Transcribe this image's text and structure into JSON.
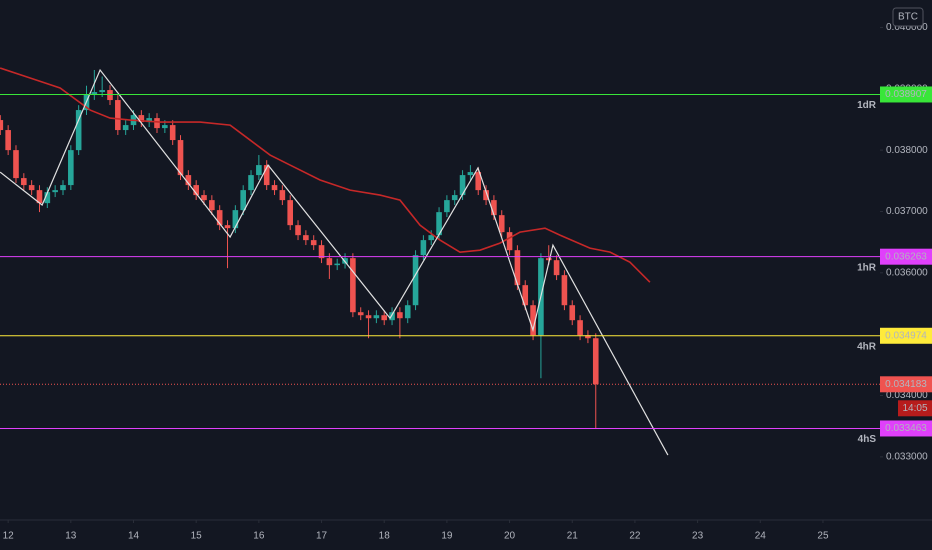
{
  "chart_data": {
    "type": "candlestick",
    "currency": "BTC",
    "x": [
      11.875,
      12,
      12.125,
      12.25,
      12.375,
      12.5,
      12.625,
      12.75,
      12.875,
      13,
      13.125,
      13.25,
      13.375,
      13.5,
      13.625,
      13.75,
      13.875,
      14,
      14.125,
      14.25,
      14.375,
      14.5,
      14.625,
      14.75,
      14.875,
      15,
      15.125,
      15.25,
      15.375,
      15.5,
      15.625,
      15.75,
      15.875,
      16,
      16.125,
      16.25,
      16.375,
      16.5,
      16.625,
      16.75,
      16.875,
      17,
      17.125,
      17.25,
      17.375,
      17.5,
      17.625,
      17.75,
      17.875,
      18,
      18.125,
      18.25,
      18.375,
      18.5,
      18.625,
      18.75,
      18.875,
      19,
      19.125,
      19.25,
      19.375,
      19.5,
      19.625,
      19.75,
      19.875,
      20,
      20.125,
      20.25,
      20.375,
      20.5,
      20.625,
      20.75,
      20.875,
      21,
      21.125,
      21.25,
      21.375
    ],
    "open": [
      0.03849,
      0.038327,
      0.038,
      0.037544,
      0.03743,
      0.037348,
      0.037136,
      0.037315,
      0.037348,
      0.03743,
      0.038,
      0.038653,
      0.038898,
      0.038946,
      0.038979,
      0.038816,
      0.038327,
      0.038408,
      0.038571,
      0.038457,
      0.038522,
      0.038359,
      0.038408,
      0.038164,
      0.037593,
      0.03743,
      0.037267,
      0.037185,
      0.037022,
      0.036777,
      0.036728,
      0.037022,
      0.037348,
      0.037593,
      0.037756,
      0.03743,
      0.037348,
      0.037185,
      0.036777,
      0.036614,
      0.036533,
      0.036451,
      0.036239,
      0.036125,
      0.03615,
      0.036239,
      0.035358,
      0.035309,
      0.03526,
      0.035309,
      0.035228,
      0.035358,
      0.03526,
      0.035472,
      0.036288,
      0.036533,
      0.036614,
      0.036989,
      0.037185,
      0.037267,
      0.037593,
      0.037642,
      0.037348,
      0.037185,
      0.03694,
      0.036663,
      0.036369,
      0.035799,
      0.035472,
      0.034983,
      0.036239,
      0.036206,
      0.035962,
      0.035472,
      0.035228,
      0.034983,
      0.034934
    ],
    "high": [
      0.03857,
      0.038407,
      0.03808,
      0.037624,
      0.03751,
      0.037428,
      0.037395,
      0.037428,
      0.03751,
      0.03808,
      0.038733,
      0.03905,
      0.039306,
      0.0392,
      0.039059,
      0.038896,
      0.038488,
      0.038651,
      0.038651,
      0.038602,
      0.038602,
      0.038488,
      0.038488,
      0.038244,
      0.037673,
      0.03751,
      0.037347,
      0.037265,
      0.037102,
      0.036857,
      0.037102,
      0.037428,
      0.037673,
      0.03792,
      0.037836,
      0.03751,
      0.037428,
      0.037265,
      0.036857,
      0.036694,
      0.036613,
      0.036531,
      0.036319,
      0.03623,
      0.036319,
      0.036319,
      0.035438,
      0.035389,
      0.035389,
      0.035389,
      0.035438,
      0.035438,
      0.035552,
      0.036368,
      0.036613,
      0.036694,
      0.037069,
      0.037265,
      0.037347,
      0.037673,
      0.037756,
      0.037722,
      0.037428,
      0.037265,
      0.03702,
      0.036743,
      0.036449,
      0.035879,
      0.035552,
      0.036319,
      0.03645,
      0.036286,
      0.036042,
      0.035552,
      0.035308,
      0.035063,
      0.035014
    ],
    "low": [
      0.038247,
      0.03792,
      0.037464,
      0.03735,
      0.037268,
      0.03699,
      0.037056,
      0.037235,
      0.037268,
      0.03735,
      0.03792,
      0.038573,
      0.038818,
      0.038866,
      0.038736,
      0.038247,
      0.038247,
      0.038328,
      0.038377,
      0.038377,
      0.038279,
      0.038279,
      0.038084,
      0.037513,
      0.03735,
      0.037187,
      0.037105,
      0.036942,
      0.036697,
      0.036076,
      0.036648,
      0.036942,
      0.037268,
      0.037513,
      0.03735,
      0.037268,
      0.037105,
      0.036697,
      0.036534,
      0.036453,
      0.036371,
      0.036159,
      0.0359,
      0.036045,
      0.03607,
      0.035278,
      0.035229,
      0.034934,
      0.03518,
      0.035148,
      0.035148,
      0.034934,
      0.03518,
      0.035392,
      0.036208,
      0.036453,
      0.036534,
      0.036909,
      0.037105,
      0.037187,
      0.037513,
      0.037268,
      0.037105,
      0.03686,
      0.036583,
      0.036289,
      0.035719,
      0.035392,
      0.034903,
      0.034282,
      0.036126,
      0.035882,
      0.035392,
      0.035148,
      0.034903,
      0.034854,
      0.033463
    ],
    "close": [
      0.038327,
      0.038,
      0.037544,
      0.03743,
      0.037348,
      0.037136,
      0.037315,
      0.037348,
      0.03743,
      0.038,
      0.038653,
      0.038898,
      0.038946,
      0.038979,
      0.038816,
      0.038327,
      0.038408,
      0.038571,
      0.038457,
      0.038522,
      0.038359,
      0.038408,
      0.038164,
      0.037593,
      0.03743,
      0.037267,
      0.037185,
      0.037022,
      0.036777,
      0.036728,
      0.037022,
      0.037348,
      0.037593,
      0.037756,
      0.03743,
      0.037348,
      0.037185,
      0.036777,
      0.036614,
      0.036533,
      0.036451,
      0.036239,
      0.036125,
      0.03615,
      0.036239,
      0.035358,
      0.035309,
      0.03526,
      0.035309,
      0.035228,
      0.035358,
      0.03526,
      0.035472,
      0.036288,
      0.036533,
      0.036614,
      0.036989,
      0.037185,
      0.037267,
      0.037593,
      0.037642,
      0.037348,
      0.037185,
      0.03694,
      0.036663,
      0.036369,
      0.035799,
      0.035472,
      0.034983,
      0.036239,
      0.036206,
      0.035962,
      0.035472,
      0.035228,
      0.034983,
      0.034934,
      0.034183
    ],
    "up_color": "#26a69a",
    "down_color": "#ef5350",
    "xlim": [
      11.87,
      25.91
    ],
    "xticks": [
      12,
      13,
      14,
      15,
      16,
      17,
      18,
      19,
      20,
      21,
      22,
      23,
      24,
      25
    ],
    "ylim": [
      0.031971,
      0.040447
    ],
    "yticks": [
      {
        "value": 0.033,
        "label": "0.033000"
      },
      {
        "value": 0.034,
        "label": "0.034000"
      },
      {
        "value": 0.035,
        "label": "0.035000"
      },
      {
        "value": 0.036,
        "label": "0.036000"
      },
      {
        "value": 0.037,
        "label": "0.037000"
      },
      {
        "value": 0.038,
        "label": "0.038000"
      },
      {
        "value": 0.039,
        "label": "0.039000"
      },
      {
        "value": 0.04,
        "label": "0.040000"
      }
    ],
    "grid": false,
    "moving_average": {
      "color": "#c62828",
      "x": [
        11.872,
        12.351,
        12.829,
        13.308,
        13.627,
        13.946,
        14.424,
        15.062,
        15.541,
        15.86,
        16.179,
        16.498,
        16.976,
        17.455,
        17.933,
        18.252,
        18.571,
        18.89,
        19.209,
        19.528,
        19.847,
        20.166,
        20.565,
        20.804,
        21.282,
        21.603,
        21.92,
        22.239
      ],
      "values": [
        0.039338,
        0.039176,
        0.039013,
        0.038653,
        0.038522,
        0.03849,
        0.038457,
        0.038457,
        0.038408,
        0.038164,
        0.03792,
        0.037756,
        0.037513,
        0.037348,
        0.037267,
        0.037185,
        0.036777,
        0.036533,
        0.036337,
        0.036369,
        0.036484,
        0.036663,
        0.036728,
        0.036614,
        0.036402,
        0.036337,
        0.036174,
        0.035847
      ]
    },
    "trendline": {
      "color": "#e0e0e0",
      "x": [
        11.872,
        12.542,
        13.467,
        15.541,
        16.147,
        18.093,
        19.496,
        20.373,
        20.692,
        22.526
      ],
      "values": [
        0.037642,
        0.037105,
        0.039306,
        0.036584,
        0.037756,
        0.03526,
        0.037709,
        0.035068,
        0.036451,
        0.03303
      ]
    },
    "levels": [
      {
        "value": 0.038907,
        "label": "1dR",
        "color": "#39e639"
      },
      {
        "value": 0.036263,
        "label": "1hR",
        "color": "#e040fb"
      },
      {
        "value": 0.034974,
        "label": "4hR",
        "color": "#ffeb3b"
      },
      {
        "value": 0.033463,
        "label": "4hS",
        "color": "#e040fb"
      }
    ],
    "last_price": {
      "value": 0.034183,
      "countdown": "14:05",
      "color": "#ef5350"
    }
  }
}
